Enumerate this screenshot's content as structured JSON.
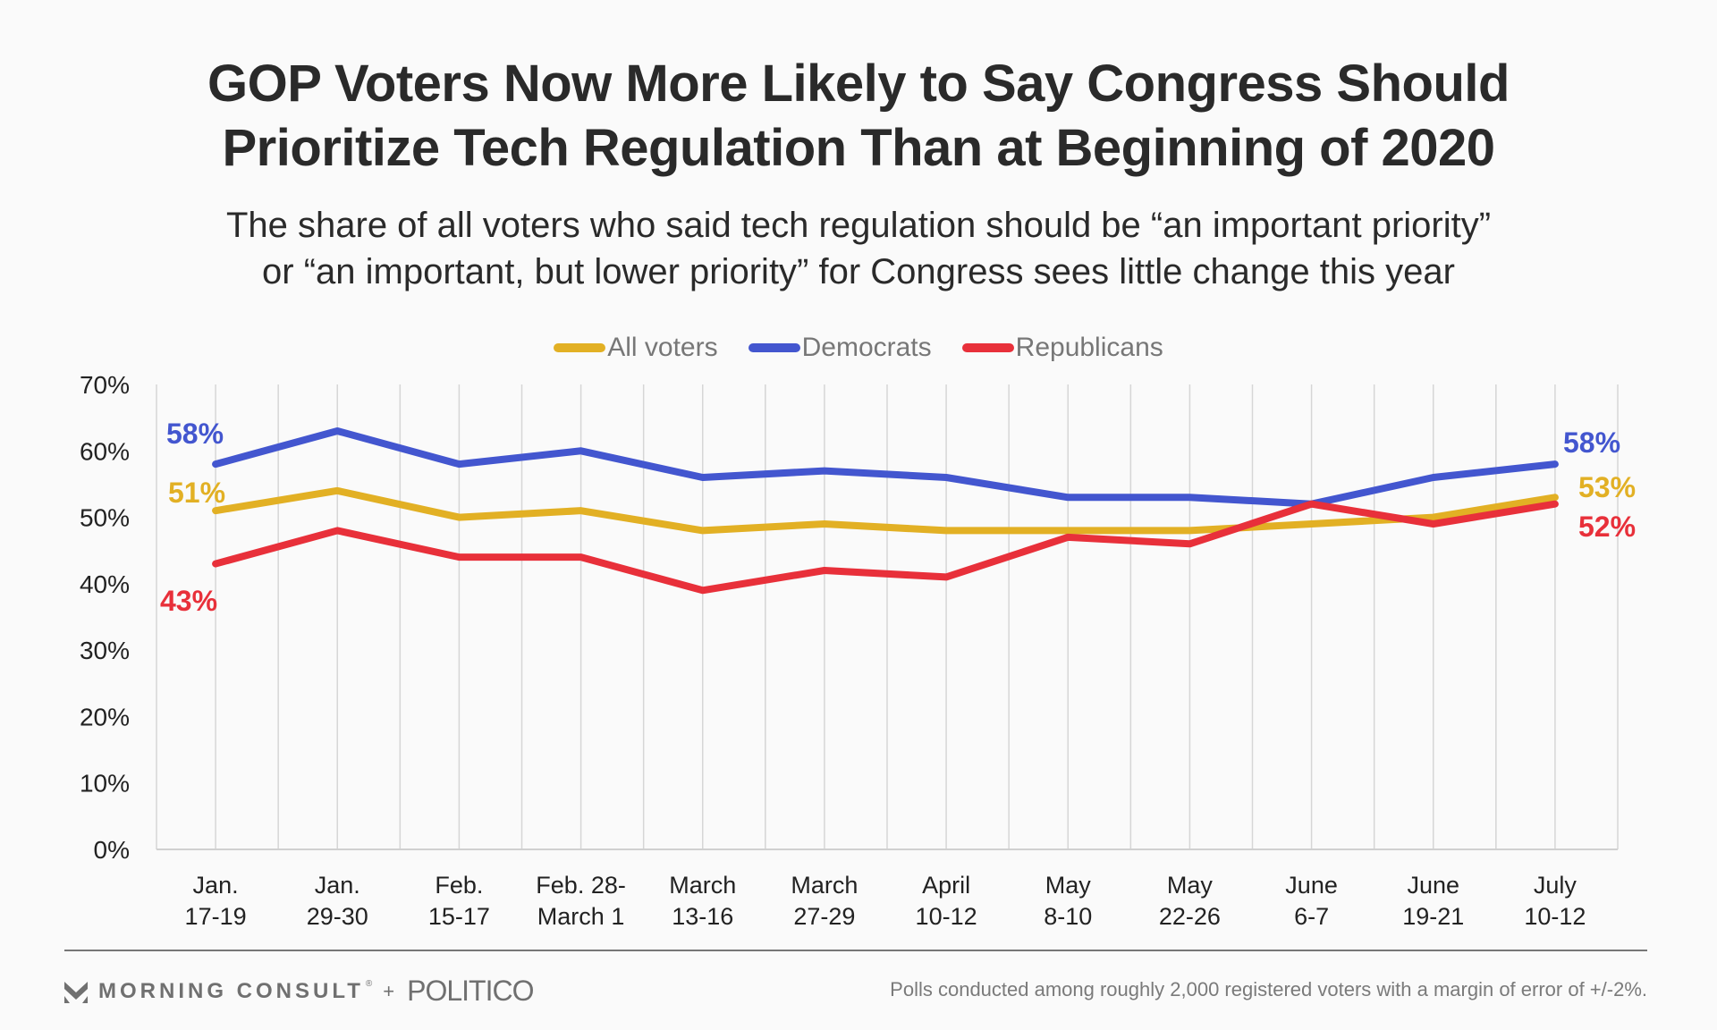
{
  "header": {
    "title_line1": "GOP Voters Now More Likely to Say Congress Should",
    "title_line2": "Prioritize Tech Regulation Than at Beginning of 2020",
    "subtitle_line1": "The share of all voters who said tech regulation should be “an important priority”",
    "subtitle_line2": "or “an important, but lower priority” for Congress sees little change this year"
  },
  "chart_data": {
    "type": "line",
    "title": "GOP Voters Now More Likely to Say Congress Should Prioritize Tech Regulation Than at Beginning of 2020",
    "subtitle": "The share of all voters who said tech regulation should be “an important priority” or “an important, but lower priority” for Congress sees little change this year",
    "xlabel": "",
    "ylabel": "",
    "ylim": [
      0,
      70
    ],
    "yticks": [
      0,
      10,
      20,
      30,
      40,
      50,
      60,
      70
    ],
    "ytick_labels": [
      "0%",
      "10%",
      "20%",
      "30%",
      "40%",
      "50%",
      "60%",
      "70%"
    ],
    "grid": "vertical",
    "legend_position": "top-center",
    "categories": [
      [
        "Jan.",
        "17-19"
      ],
      [
        "Jan.",
        "29-30"
      ],
      [
        "Feb.",
        "15-17"
      ],
      [
        "Feb. 28-",
        "March 1"
      ],
      [
        "March",
        "13-16"
      ],
      [
        "March",
        "27-29"
      ],
      [
        "April",
        "10-12"
      ],
      [
        "May",
        "8-10"
      ],
      [
        "May",
        "22-26"
      ],
      [
        "June",
        "6-7"
      ],
      [
        "June",
        "19-21"
      ],
      [
        "July",
        "10-12"
      ]
    ],
    "series": [
      {
        "name": "All voters",
        "color": "#e2b024",
        "values": [
          51,
          54,
          50,
          51,
          48,
          49,
          48,
          48,
          48,
          49,
          50,
          53
        ],
        "start_label": "51%",
        "end_label": "53%"
      },
      {
        "name": "Democrats",
        "color": "#4356cf",
        "values": [
          58,
          63,
          58,
          60,
          56,
          57,
          56,
          53,
          53,
          52,
          56,
          58
        ],
        "start_label": "58%",
        "end_label": "58%"
      },
      {
        "name": "Republicans",
        "color": "#e8303a",
        "values": [
          43,
          48,
          44,
          44,
          39,
          42,
          41,
          47,
          46,
          52,
          49,
          52
        ],
        "start_label": "43%",
        "end_label": "52%"
      }
    ]
  },
  "footer": {
    "brand_morning_consult": "MORNING CONSULT",
    "brand_registered": "®",
    "brand_plus": "+",
    "brand_politico": "POLITICO",
    "note": "Polls conducted among roughly 2,000 registered voters with a margin of error of +/-2%."
  }
}
